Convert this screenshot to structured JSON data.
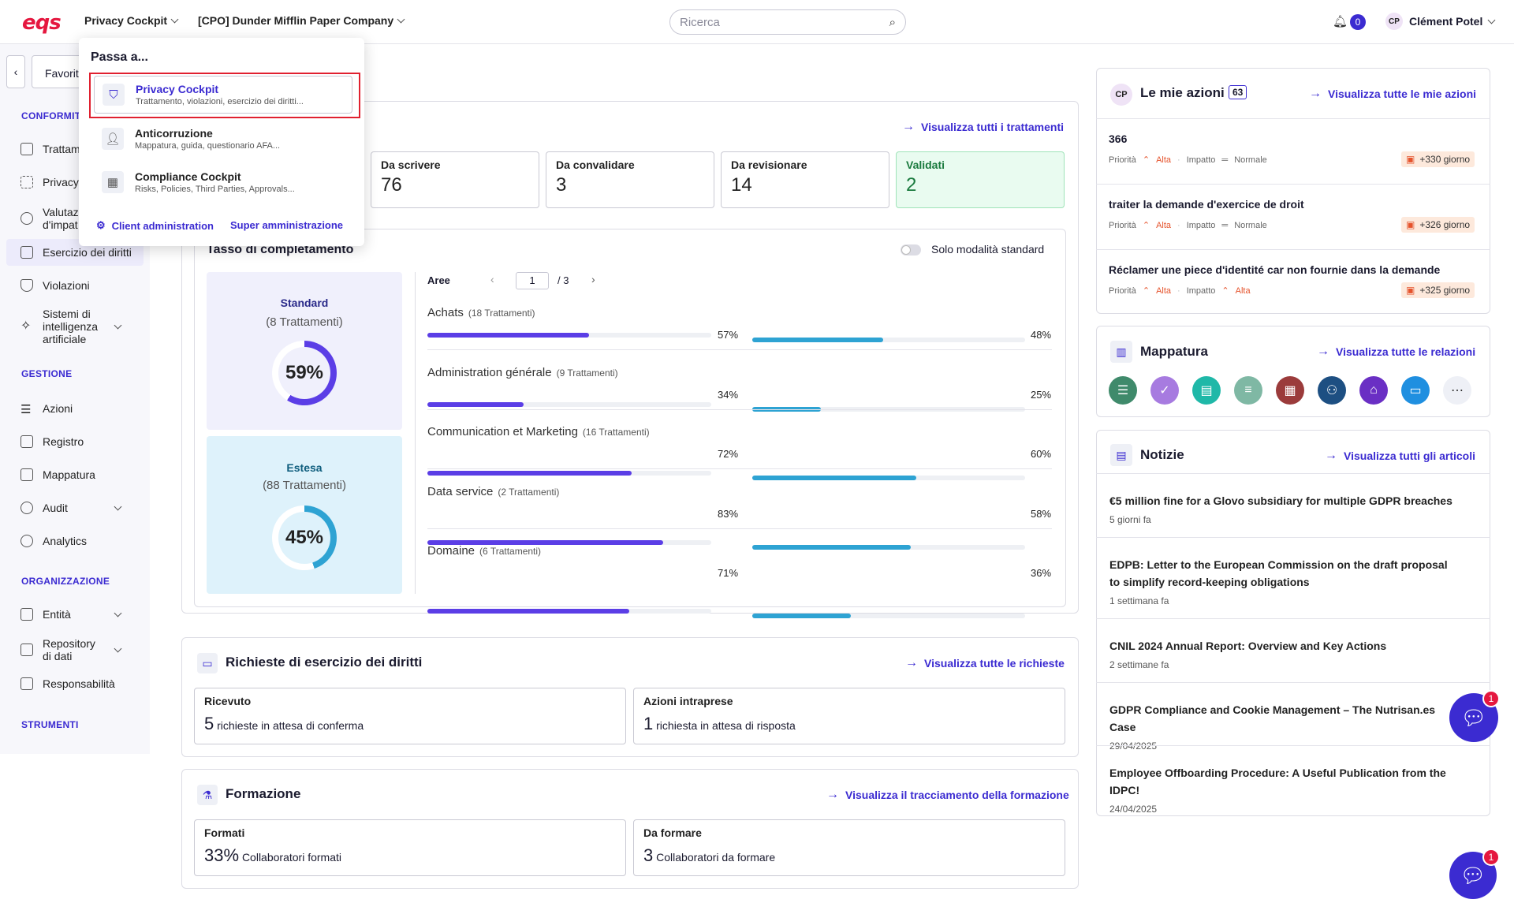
{
  "header": {
    "logo": "eqs",
    "app_selector": "Privacy Cockpit",
    "company_selector": "[CPO] Dunder Mifflin Paper Company",
    "search_placeholder": "Ricerca",
    "notifications_count": "0",
    "user_initials": "CP",
    "user_name": "Clément Potel"
  },
  "dropdown": {
    "title": "Passa a...",
    "items": [
      {
        "title": "Privacy Cockpit",
        "subtitle": "Trattamento, violazioni, esercizio dei diritti..."
      },
      {
        "title": "Anticorruzione",
        "subtitle": "Mappatura, guida, questionario AFA..."
      },
      {
        "title": "Compliance Cockpit",
        "subtitle": "Risks, Policies, Third Parties, Approvals..."
      }
    ],
    "client_admin": "Client administration",
    "super_admin": "Super amministrazione"
  },
  "sidebar": {
    "favorites": "Favorit",
    "sections": {
      "conformita": "CONFORMIT",
      "gestione": "GESTIONE",
      "organizzazione": "ORGANIZZAZIONE",
      "strumenti": "STRUMENTI"
    },
    "items": [
      "Trattam",
      "Privacy",
      "Valutaz d'impat",
      "Esercizio dei diritti",
      "Violazioni",
      "Sistemi di intelligenza artificiale",
      "Azioni",
      "Registro",
      "Mappatura",
      "Audit",
      "Analytics",
      "Entità",
      "Repository di dati",
      "Responsabilità"
    ]
  },
  "trattamenti": {
    "link": "Visualizza tutti i trattamenti",
    "stats": [
      {
        "label": "Da scrivere",
        "value": "76"
      },
      {
        "label": "Da convalidare",
        "value": "3"
      },
      {
        "label": "Da revisionare",
        "value": "14"
      },
      {
        "label": "Validati",
        "value": "2"
      }
    ]
  },
  "completamento": {
    "title": "Tasso di completamento",
    "toggle_label": "Solo modalità standard",
    "standard": {
      "label": "Standard",
      "count": "(8 Trattamenti)",
      "pct": "59%",
      "value": 59
    },
    "estesa": {
      "label": "Estesa",
      "count": "(88 Trattamenti)",
      "pct": "45%",
      "value": 45
    },
    "areas_label": "Aree",
    "page": "1",
    "pages": "/ 3",
    "rows": [
      {
        "name": "Achats",
        "count": "(18 Trattamenti)",
        "a": 57,
        "a_label": "57%",
        "b": 48,
        "b_label": "48%"
      },
      {
        "name": "Administration générale",
        "count": "(9 Trattamenti)",
        "a": 34,
        "a_label": "34%",
        "b": 25,
        "b_label": "25%"
      },
      {
        "name": "Communication et Marketing",
        "count": "(16 Trattamenti)",
        "a": 72,
        "a_label": "72%",
        "b": 60,
        "b_label": "60%"
      },
      {
        "name": "Data service",
        "count": "(2 Trattamenti)",
        "a": 83,
        "a_label": "83%",
        "b": 58,
        "b_label": "58%"
      },
      {
        "name": "Domaine",
        "count": "(6 Trattamenti)",
        "a": 71,
        "a_label": "71%",
        "b": 36,
        "b_label": "36%"
      }
    ]
  },
  "richieste": {
    "title": "Richieste di esercizio dei diritti",
    "link": "Visualizza tutte le richieste",
    "ricevuto_label": "Ricevuto",
    "ricevuto_value": "5",
    "ricevuto_text": "richieste in attesa di conferma",
    "azioni_label": "Azioni intraprese",
    "azioni_value": "1",
    "azioni_text": "richiesta in attesa di risposta"
  },
  "formazione": {
    "title": "Formazione",
    "link": "Visualizza il tracciamento della formazione",
    "formati_label": "Formati",
    "formati_value": "33%",
    "formati_text": "Collaboratori formati",
    "daformare_label": "Da formare",
    "daformare_value": "3",
    "daformare_text": "Collaboratori da formare"
  },
  "azioni": {
    "title": "Le mie azioni",
    "count": "63",
    "link": "Visualizza tutte le mie azioni",
    "priority_label": "Priorità",
    "impact_label": "Impatto",
    "items": [
      {
        "title": "366",
        "priority": "Alta",
        "impact": "Normale",
        "due": "+330 giorno"
      },
      {
        "title": "traiter la demande d'exercice de droit",
        "priority": "Alta",
        "impact": "Normale",
        "due": "+326 giorno"
      },
      {
        "title": "Réclamer une piece d'identité car non fournie dans la demande",
        "priority": "Alta",
        "impact": "Alta",
        "due": "+325 giorno"
      }
    ]
  },
  "mappatura": {
    "title": "Mappatura",
    "link": "Visualizza tutte le relazioni",
    "icons": [
      {
        "name": "list-icon",
        "color": "#3f8a6b",
        "glyph": "☰"
      },
      {
        "name": "shield-check-icon",
        "color": "#a77be0",
        "glyph": "✓"
      },
      {
        "name": "document-icon",
        "color": "#1fb8a8",
        "glyph": "▤"
      },
      {
        "name": "database-icon",
        "color": "#7fb8a4",
        "glyph": "≡"
      },
      {
        "name": "report-icon",
        "color": "#9b3b3b",
        "glyph": "▦"
      },
      {
        "name": "people-icon",
        "color": "#1d4f82",
        "glyph": "⚇"
      },
      {
        "name": "bank-icon",
        "color": "#6a2fc4",
        "glyph": "⌂"
      },
      {
        "name": "window-icon",
        "color": "#1f8fe0",
        "glyph": "▭"
      },
      {
        "name": "more-icon",
        "color": "#eef0f6",
        "glyph": "⋯"
      }
    ]
  },
  "notizie": {
    "title": "Notizie",
    "link": "Visualizza tutti gli articoli",
    "items": [
      {
        "title": "€5 million fine for a Glovo subsidiary for multiple GDPR breaches",
        "date": "5 giorni fa"
      },
      {
        "title": "EDPB: Letter to the European Commission on the draft proposal to simplify record-keeping obligations",
        "date": "1 settimana fa"
      },
      {
        "title": "CNIL 2024 Annual Report: Overview and Key Actions",
        "date": "2 settimane fa"
      },
      {
        "title": "GDPR Compliance and Cookie Management – The Nutrisan.es Case",
        "date": "29/04/2025"
      },
      {
        "title": "Employee Offboarding Procedure: A Useful Publication from the IDPC!",
        "date": "24/04/2025"
      }
    ]
  },
  "chat_badge": "1",
  "colors": {
    "accent": "#3b2bd1",
    "bar_a": "#5b3ee6",
    "bar_b": "#2ea3d3",
    "validati_bg": "#e9fbf0"
  }
}
